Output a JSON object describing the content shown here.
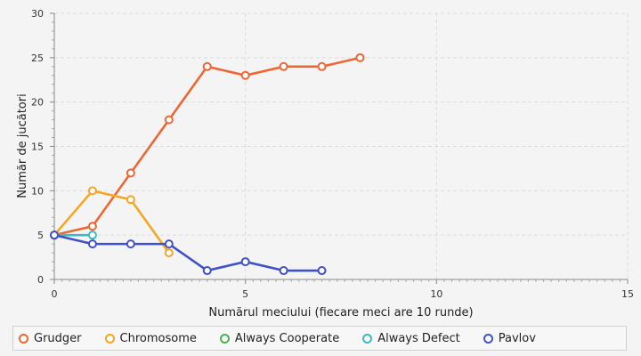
{
  "chart_data": {
    "type": "line",
    "title": "",
    "xlabel": "Numărul meciului (fiecare meci are 10 runde)",
    "ylabel": "Număr de jucători",
    "xlim": [
      0,
      15
    ],
    "ylim": [
      0,
      30
    ],
    "x_ticks": [
      "0",
      "5",
      "10",
      "15"
    ],
    "y_ticks": [
      "0",
      "5",
      "10",
      "15",
      "20",
      "25",
      "30"
    ],
    "grid": true,
    "legend_position": "bottom",
    "series": [
      {
        "name": "Grudger",
        "color": "#ee6633",
        "x": [
          0,
          1,
          2,
          3,
          4,
          5,
          6,
          7,
          8
        ],
        "values": [
          5,
          6,
          12,
          18,
          24,
          23,
          24,
          24,
          25
        ]
      },
      {
        "name": "Chromosome",
        "color": "#f5a623",
        "x": [
          0,
          1,
          2,
          3
        ],
        "values": [
          5,
          10,
          9,
          3
        ]
      },
      {
        "name": "Always Cooperate",
        "color": "#4caf50",
        "x": [
          0
        ],
        "values": [
          5
        ]
      },
      {
        "name": "Always Defect",
        "color": "#3fb8c0",
        "x": [
          0,
          1
        ],
        "values": [
          5,
          5
        ]
      },
      {
        "name": "Pavlov",
        "color": "#3f51c6",
        "x": [
          0,
          1,
          2,
          3,
          4,
          5,
          6,
          7
        ],
        "values": [
          5,
          4,
          4,
          4,
          1,
          2,
          1,
          1
        ]
      }
    ]
  }
}
